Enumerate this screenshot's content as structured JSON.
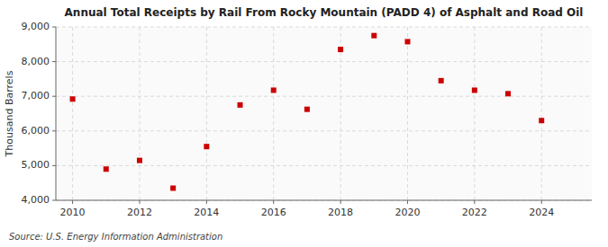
{
  "chart_data": {
    "type": "scatter",
    "title": "Annual Total Receipts by Rail From Rocky Mountain (PADD 4) of Asphalt and Road Oil",
    "y_label": "Thousand Barrels",
    "annotations": [
      "Source: U.S. Energy Information Administration"
    ],
    "x": [
      2010,
      2011,
      2012,
      2013,
      2014,
      2015,
      2016,
      2017,
      2018,
      2019,
      2020,
      2021,
      2022,
      2023,
      2024
    ],
    "values": [
      6920,
      4900,
      5150,
      4350,
      5550,
      6750,
      7175,
      6625,
      8350,
      8750,
      8575,
      7450,
      7175,
      7075,
      6300
    ],
    "color": "#cc0000",
    "marker": "square",
    "grid": true,
    "xlim": [
      2009.5,
      2025.5
    ],
    "ylim": [
      4000,
      9000
    ],
    "xticks": [
      2010,
      2012,
      2014,
      2016,
      2018,
      2020,
      2022,
      2024
    ],
    "yticks": [
      {
        "value": 4000,
        "label": "4,000"
      },
      {
        "value": 5000,
        "label": "5,000"
      },
      {
        "value": 6000,
        "label": "6,000"
      },
      {
        "value": 7000,
        "label": "7,000"
      },
      {
        "value": 8000,
        "label": "8,000"
      },
      {
        "value": 9000,
        "label": "9,000"
      }
    ]
  }
}
